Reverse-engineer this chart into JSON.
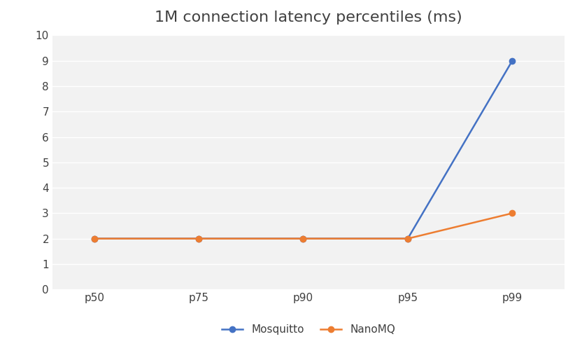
{
  "title": "1M connection latency percentiles (ms)",
  "categories": [
    "p50",
    "p75",
    "p90",
    "p95",
    "p99"
  ],
  "series": [
    {
      "name": "Mosquitto",
      "values": [
        2,
        2,
        2,
        2,
        9
      ],
      "color": "#4472C4",
      "marker": "o",
      "markersize": 6
    },
    {
      "name": "NanoMQ",
      "values": [
        2,
        2,
        2,
        2,
        3
      ],
      "color": "#ED7D31",
      "marker": "o",
      "markersize": 6
    }
  ],
  "ylim": [
    0,
    10
  ],
  "yticks": [
    0,
    1,
    2,
    3,
    4,
    5,
    6,
    7,
    8,
    9,
    10
  ],
  "title_fontsize": 16,
  "tick_fontsize": 11,
  "legend_fontsize": 11,
  "plot_bg_color": "#F2F2F2",
  "fig_bg_color": "#FFFFFF",
  "grid_color": "#FFFFFF",
  "linewidth": 1.8,
  "xlim_left": -0.4,
  "xlim_right": 4.5
}
